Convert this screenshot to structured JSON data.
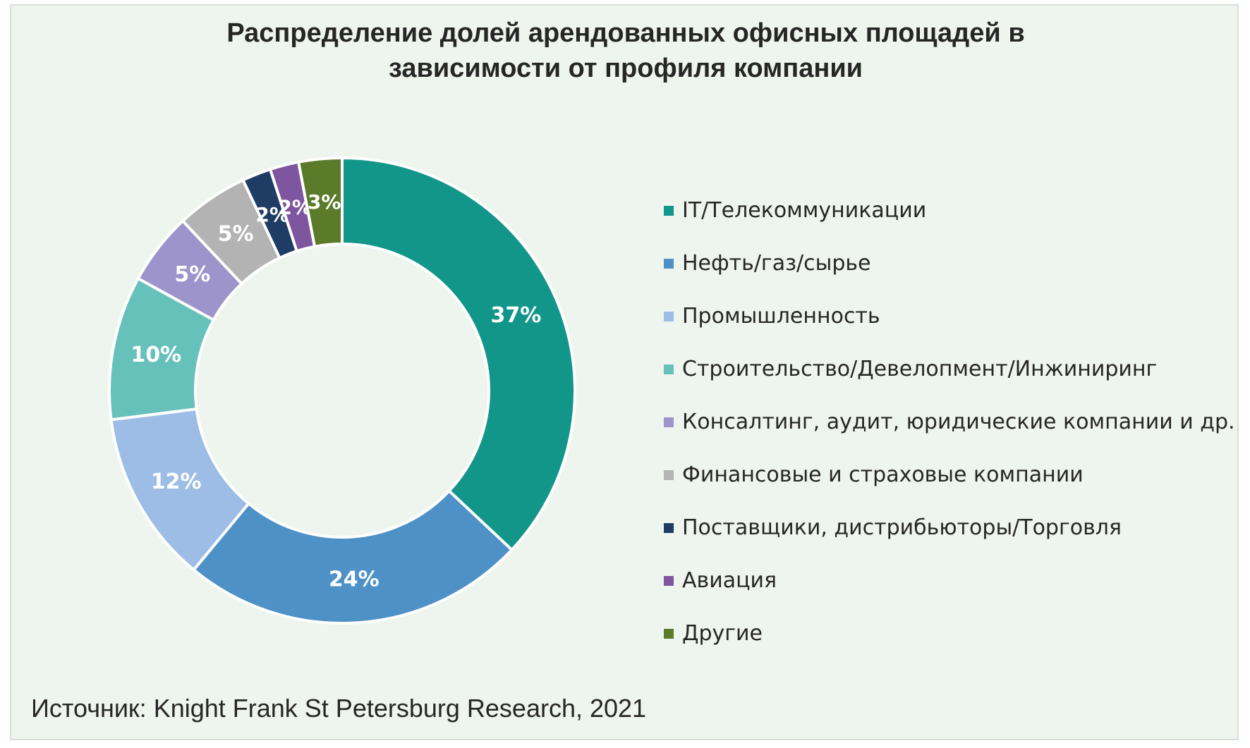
{
  "title": {
    "line1": "Распределение долей арендованных офисных площадей в",
    "line2": "зависимости от профиля компании"
  },
  "source": "Источник: Knight Frank St Petersburg Research, 2021",
  "chart_data": {
    "type": "pie",
    "donut": true,
    "title": "Распределение долей арендованных офисных площадей в зависимости от профиля компании",
    "legend_position": "right",
    "unit": "%",
    "slices": [
      {
        "label": "IT/Телекоммуникации",
        "value": 37,
        "display": "37%",
        "color": "#12968a"
      },
      {
        "label": "Нефть/газ/сырье",
        "value": 24,
        "display": "24%",
        "color": "#4e91c6"
      },
      {
        "label": "Промышленность",
        "value": 12,
        "display": "12%",
        "color": "#9dbde6"
      },
      {
        "label": "Строительство/Девелопмент/Инжиниринг",
        "value": 10,
        "display": "10%",
        "color": "#67c1bb"
      },
      {
        "label": "Консалтинг, аудит, юридические компании и др.",
        "value": 5,
        "display": "5%",
        "color": "#9d94cc"
      },
      {
        "label": "Финансовые и страховые компании",
        "value": 5,
        "display": "5%",
        "color": "#b3b3b3"
      },
      {
        "label": "Поставщики, дистрибьюторы/Торговля",
        "value": 2,
        "display": "2%",
        "color": "#1f3d64"
      },
      {
        "label": "Авиация",
        "value": 2,
        "display": "2%",
        "color": "#7e569f"
      },
      {
        "label": "Другие",
        "value": 3,
        "display": "3%",
        "color": "#5b7a2a"
      }
    ]
  }
}
